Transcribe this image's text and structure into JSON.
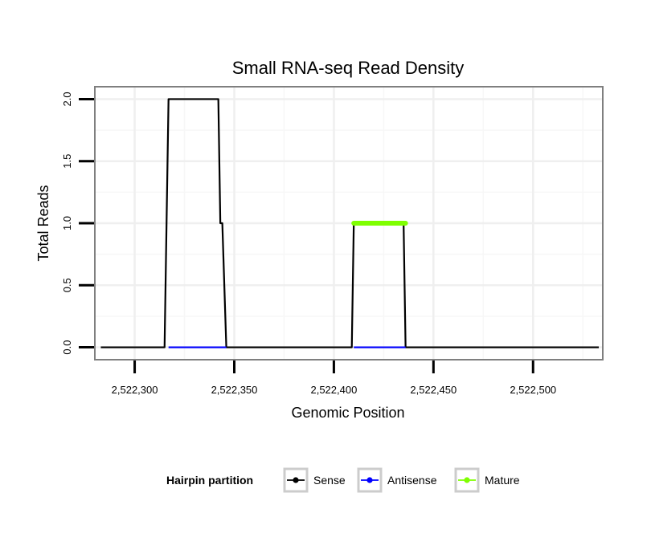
{
  "chart_data": {
    "type": "line",
    "title": "Small RNA-seq Read Density",
    "xlabel": "Genomic Position",
    "ylabel": "Total Reads",
    "xlim": [
      2522280,
      2522535
    ],
    "ylim": [
      -0.1,
      2.1
    ],
    "x_ticks": [
      2522300,
      2522350,
      2522400,
      2522450,
      2522500
    ],
    "x_tick_labels": [
      "2,522,300",
      "2,522,350",
      "2,522,400",
      "2,522,450",
      "2,522,500"
    ],
    "y_ticks": [
      0.0,
      0.5,
      1.0,
      1.5,
      2.0
    ],
    "y_tick_labels": [
      "0.0",
      "0.5",
      "1.0",
      "1.5",
      "2.0"
    ],
    "grid": true,
    "legend": {
      "title": "Hairpin partition",
      "position": "bottom",
      "entries": [
        "Sense",
        "Antisense",
        "Mature"
      ]
    },
    "series": [
      {
        "name": "Sense",
        "color": "#000000",
        "x": [
          2522283,
          2522315,
          2522317,
          2522342,
          2522343,
          2522344,
          2522346,
          2522365,
          2522409,
          2522410,
          2522435,
          2522436,
          2522533
        ],
        "values": [
          0,
          0,
          2,
          2,
          1,
          1,
          0,
          0,
          0,
          1,
          1,
          0,
          0
        ]
      },
      {
        "name": "Antisense",
        "color": "#0000ff",
        "x": [
          2522317,
          2522346,
          2522365,
          2522410,
          2522436
        ],
        "values": [
          0,
          0,
          null,
          0,
          0
        ]
      },
      {
        "name": "Mature",
        "color": "#7fff00",
        "x": [
          2522410,
          2522436
        ],
        "values": [
          1,
          1
        ]
      }
    ]
  }
}
